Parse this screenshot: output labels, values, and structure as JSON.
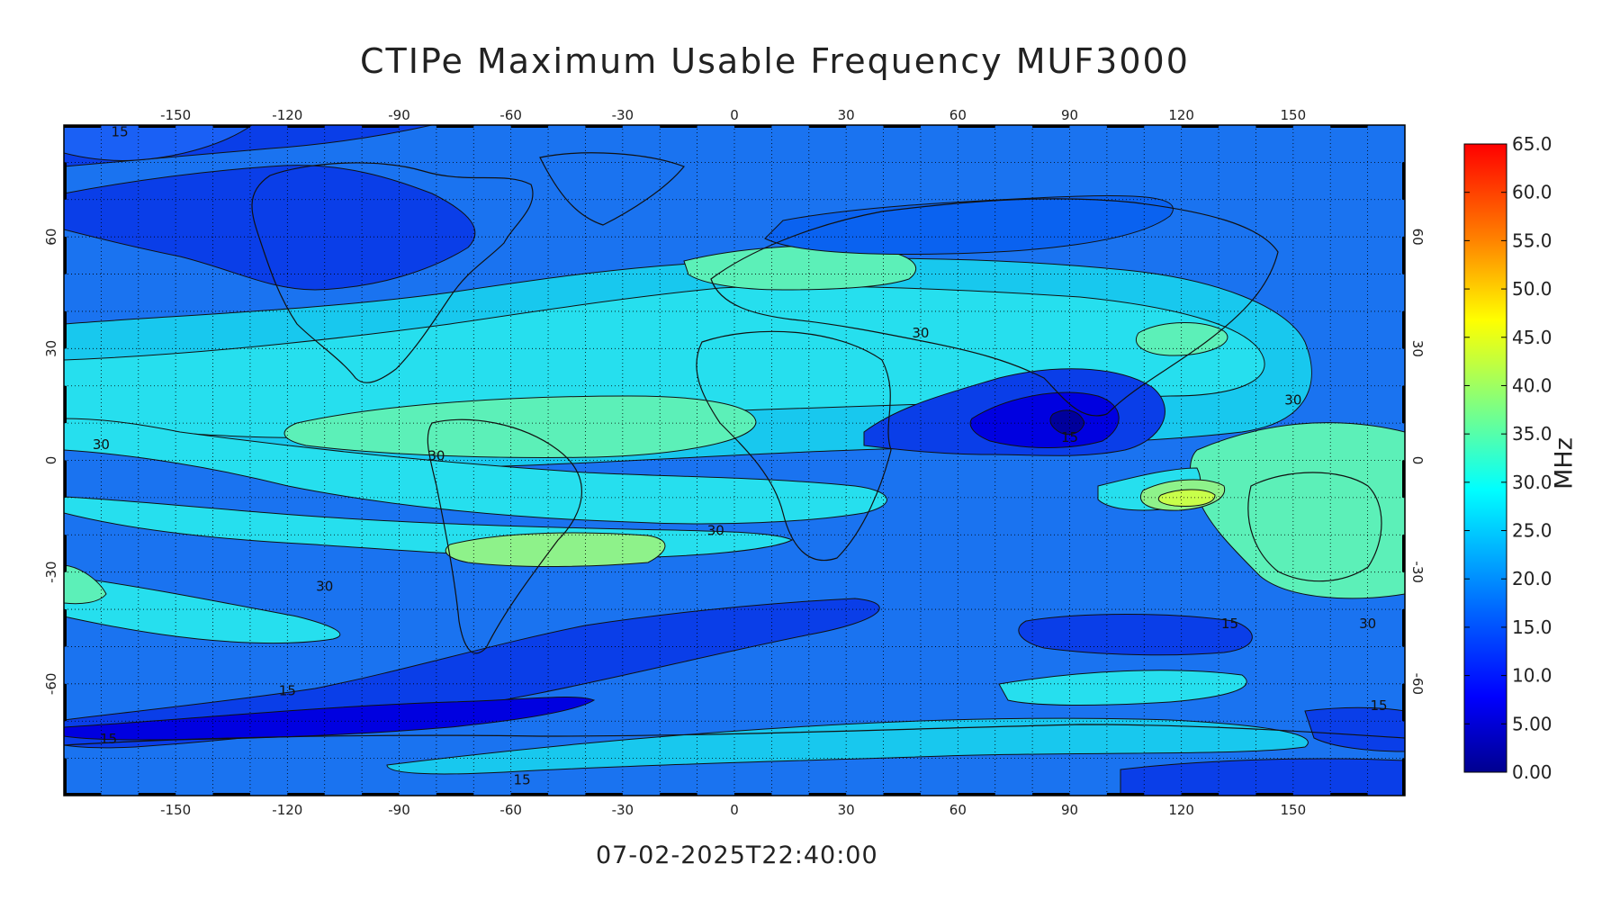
{
  "title": "CTIPe Maximum Usable Frequency MUF3000",
  "timestamp": "07-02-2025T22:40:00",
  "colorbar": {
    "unit": "MHz",
    "ticks": [
      "0.00",
      "5.00",
      "10.0",
      "15.0",
      "20.0",
      "25.0",
      "30.0",
      "35.0",
      "40.0",
      "45.0",
      "50.0",
      "55.0",
      "60.0",
      "65.0"
    ],
    "range": [
      0,
      65
    ],
    "colormap": "jet",
    "colors": [
      "#00008f",
      "#0000ff",
      "#0080ff",
      "#00ffff",
      "#80ff80",
      "#ffff00",
      "#ff8000",
      "#ff0000",
      "#800000"
    ]
  },
  "map": {
    "projection": "cylindrical-equidistant",
    "lon_ticks": [
      "-150",
      "-120",
      "-90",
      "-60",
      "-30",
      "0",
      "30",
      "60",
      "90",
      "120",
      "150"
    ],
    "lat_ticks": [
      "60",
      "30",
      "0",
      "-30",
      "-60"
    ],
    "lon_range": [
      -180,
      180
    ],
    "lat_range": [
      -90,
      90
    ],
    "grid": "dotted-10deg",
    "contour_levels": [
      15,
      30
    ],
    "contour_labels": [
      {
        "text": "15",
        "lon": -165,
        "lat": 87
      },
      {
        "text": "30",
        "lon": -170,
        "lat": 3
      },
      {
        "text": "30",
        "lon": -80,
        "lat": 0
      },
      {
        "text": "30",
        "lon": -5,
        "lat": -20
      },
      {
        "text": "30",
        "lon": -110,
        "lat": -35
      },
      {
        "text": "30",
        "lon": 50,
        "lat": 33
      },
      {
        "text": "30",
        "lon": 150,
        "lat": 15
      },
      {
        "text": "30",
        "lon": 170,
        "lat": -45
      },
      {
        "text": "15",
        "lon": -120,
        "lat": -63
      },
      {
        "text": "15",
        "lon": -168,
        "lat": -76
      },
      {
        "text": "15",
        "lon": -57,
        "lat": -87
      },
      {
        "text": "15",
        "lon": 90,
        "lat": 5
      },
      {
        "text": "15",
        "lon": 133,
        "lat": -45
      },
      {
        "text": "15",
        "lon": 173,
        "lat": -67
      }
    ]
  }
}
